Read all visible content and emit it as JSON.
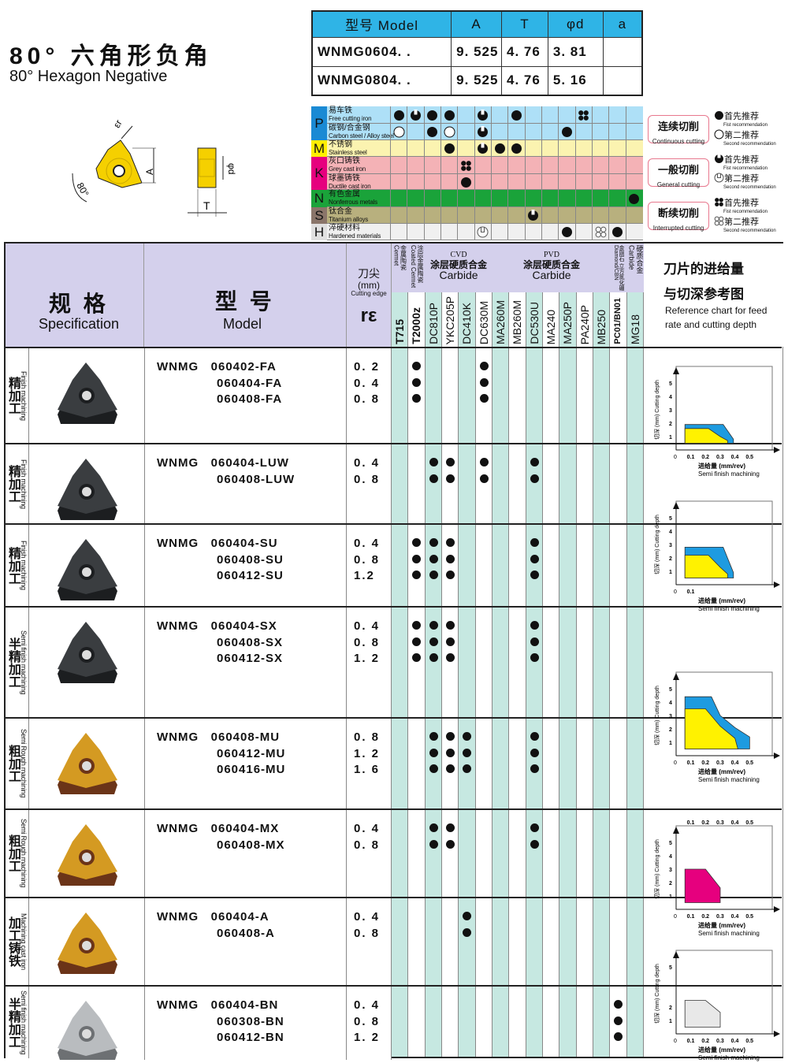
{
  "title": {
    "cn": "80° 六角形负角",
    "en": "80° Hexagon Negative"
  },
  "diagram": {
    "labels": [
      "εr",
      "A",
      "80°",
      "φd",
      "T"
    ],
    "insert_color": "#f5d000"
  },
  "spec_table": {
    "headers": [
      "型号 Model",
      "A",
      "T",
      "φd",
      "a"
    ],
    "rows": [
      [
        "WNMG0604. .",
        "9. 525",
        "4. 76",
        "3. 81",
        ""
      ],
      [
        "WNMG0804. .",
        "9. 525",
        "4. 76",
        "5. 16",
        ""
      ]
    ]
  },
  "materials": [
    {
      "letter": "P",
      "cn": "易车铁",
      "en": "Free cutting iron",
      "color": "#aee0f7",
      "letter_color": "#1a8ad4",
      "marks": {
        "0": "full",
        "1": "general",
        "2": "full",
        "3": "full",
        "5": "general",
        "7": "full",
        "11": "interrupted"
      }
    },
    {
      "letter": "",
      "cn": "碳钢/合金钢",
      "en": "Carbon steel / Alloy steel",
      "color": "#aee0f7",
      "letter_color": "#1a8ad4",
      "marks": {
        "0": "hollow",
        "2": "full",
        "3": "hollow",
        "5": "general",
        "10": "full"
      }
    },
    {
      "letter": "M",
      "cn": "不锈钢",
      "en": "Stainless steel",
      "color": "#fbf3b0",
      "letter_color": "#ffee00",
      "marks": {
        "3": "full",
        "5": "general",
        "6": "full",
        "7": "full"
      }
    },
    {
      "letter": "K",
      "cn": "灰口铸铁",
      "en": "Grey cast iron",
      "color": "#f4b2b6",
      "letter_color": "#e6007e",
      "marks": {
        "4": "interrupted"
      }
    },
    {
      "letter": "",
      "cn": "球墨铸铁",
      "en": "Ductile cast iron",
      "color": "#f4b2b6",
      "letter_color": "#e6007e",
      "marks": {
        "4": "full"
      }
    },
    {
      "letter": "N",
      "cn": "有色金属",
      "en": "Nonferrous metals",
      "color": "#1aa33a",
      "letter_color": "#1aa33a",
      "marks": {
        "14": "full"
      }
    },
    {
      "letter": "S",
      "cn": "钛合金",
      "en": "Titanium alloys",
      "color": "#b8b07e",
      "letter_color": "#8a756a",
      "marks": {
        "8": "general"
      }
    },
    {
      "letter": "H",
      "cn": "淬硬材料",
      "en": "Hardened materials",
      "color": "#f0f0f0",
      "letter_color": "#e0e0e0",
      "marks": {
        "5": "general2",
        "10": "full",
        "12": "interrupted2",
        "13": "full"
      }
    }
  ],
  "legend": [
    {
      "cn": "连续切削",
      "en": "Continuous cutting",
      "first": "首先推荐",
      "first_en": "Fist recommendation",
      "second": "第二推荐",
      "second_en": "Second recommendation",
      "m1": "full",
      "m2": "hollow"
    },
    {
      "cn": "一般切削",
      "en": "General cutting",
      "first": "首先推荐",
      "first_en": "Fist recommendation",
      "second": "第二推荐",
      "second_en": "Second recommendation",
      "m1": "general",
      "m2": "general2"
    },
    {
      "cn": "断续切削",
      "en": "Interrupted cutting",
      "first": "首先推荐",
      "first_en": "Fist recommendation",
      "second": "第二推荐",
      "second_en": "Second recommendation",
      "m1": "interrupted",
      "m2": "interrupted2"
    }
  ],
  "header": {
    "spec_cn": "规 格",
    "spec_en": "Specification",
    "model_cn": "型 号",
    "model_en": "Model",
    "edge_cn": "刀尖",
    "edge_unit": "(mm)",
    "edge_en": "Cutting edge",
    "re": "rε",
    "cermet_cn": "金属陶瓷",
    "cermet_en": "Cermet",
    "coated_cn": "涂层金属陶瓷",
    "coated_en": "Coated Cermet",
    "cvd": "CVD",
    "cvd_cn": "涂层硬质合金",
    "cvd_en": "Carbide",
    "pvd": "PVD",
    "pvd_cn": "涂层硬质合金",
    "pvd_en": "Carbide",
    "cbn_cn": "金刚石 立方氮化硼",
    "cbn_en": "Diamond/CBN",
    "carbide_cn": "硬质合金",
    "carbide_en": "Carbide",
    "chart_cn1": "刀片的进给量",
    "chart_cn2": "与切深参考图",
    "chart_en1": "Reference chart for feed",
    "chart_en2": "rate and cutting depth"
  },
  "grades": [
    "T715",
    "T2000z",
    "DC810P",
    "YKC205P",
    "DC410K",
    "DC630M",
    "MA260M",
    "MB260M",
    "DC530U",
    "MA240",
    "MA250P",
    "PA240P",
    "MB250",
    "PC01/BN01",
    "MG18"
  ],
  "rows": [
    {
      "cat_cn": "精加工",
      "cat_en": "Finish machining",
      "insert": "dark",
      "models": [
        "WNMG   060402-FA",
        "060404-FA",
        "060408-FA"
      ],
      "re": [
        "0. 2",
        "0. 4",
        "0. 8"
      ],
      "marks": [
        1,
        5
      ]
    },
    {
      "cat_cn": "精加工",
      "cat_en": "Finish machining",
      "insert": "dark",
      "models": [
        "WNMG   060404-LUW",
        "060408-LUW"
      ],
      "re": [
        "0. 4",
        "0. 8"
      ],
      "marks": [
        2,
        3,
        5,
        8
      ]
    },
    {
      "cat_cn": "精加工",
      "cat_en": "Finish machining",
      "insert": "dark",
      "models": [
        "WNMG   060404-SU",
        "060408-SU",
        "060412-SU"
      ],
      "re": [
        "0. 4",
        "0. 8",
        "1.2"
      ],
      "marks": [
        1,
        2,
        3,
        8
      ]
    },
    {
      "cat_cn": "半精加工",
      "cat_en": "Semi finish machining",
      "insert": "dark",
      "models": [
        "WNMG   060404-SX",
        "060408-SX",
        "060412-SX"
      ],
      "re": [
        "0. 4",
        "0. 8",
        "1. 2"
      ],
      "marks": [
        1,
        2,
        3,
        8
      ]
    },
    {
      "cat_cn": "粗加工",
      "cat_en": "Semi Rough machining",
      "insert": "gold",
      "models": [
        "WNMG   060408-MU",
        "060412-MU",
        "060416-MU"
      ],
      "re": [
        "0. 8",
        "1. 2",
        "1. 6"
      ],
      "marks": [
        2,
        3,
        4,
        8
      ]
    },
    {
      "cat_cn": "粗加工",
      "cat_en": "Semi Rough machining",
      "insert": "gold",
      "models": [
        "WNMG   060404-MX",
        "060408-MX"
      ],
      "re": [
        "0. 4",
        "0. 8"
      ],
      "marks": [
        2,
        3,
        8
      ]
    },
    {
      "cat_cn": "加工铸铁",
      "cat_en": "Machining cast iron",
      "insert": "gold",
      "models": [
        "WNMG   060404-A",
        "060408-A"
      ],
      "re": [
        "0. 4",
        "0. 8"
      ],
      "marks": [
        4
      ]
    },
    {
      "cat_cn": "半精加工",
      "cat_en": "Semi finish machining",
      "insert": "silver",
      "models": [
        "WNMG   060404-BN",
        "060308-BN",
        "060412-BN"
      ],
      "re": [
        "0. 4",
        "0. 8",
        "1. 2"
      ],
      "marks": [
        13
      ]
    }
  ],
  "chart_data": [
    {
      "type": "area",
      "ylabel": "切深 (mm) Cutting depth",
      "xlabel": "进给量 (mm/rev)",
      "caption": "Semi finish machining",
      "xticks": [
        0.1,
        0.2,
        0.3,
        0.4,
        0.5
      ],
      "yticks": [
        1,
        2,
        3,
        4,
        5
      ],
      "xlim": [
        0,
        0.6
      ],
      "ylim": [
        0,
        6
      ],
      "regions": [
        {
          "color": "#1e9be0",
          "points": [
            [
              0.06,
              0.5
            ],
            [
              0.06,
              1.9
            ],
            [
              0.32,
              1.9
            ],
            [
              0.39,
              0.8
            ],
            [
              0.39,
              0.5
            ]
          ]
        },
        {
          "color": "#fff200",
          "points": [
            [
              0.06,
              0.5
            ],
            [
              0.06,
              1.6
            ],
            [
              0.22,
              1.6
            ],
            [
              0.3,
              1.0
            ],
            [
              0.35,
              0.7
            ],
            [
              0.35,
              0.5
            ]
          ]
        }
      ]
    },
    {
      "type": "area",
      "ylabel": "切深 (mm) Cutting depth",
      "xlabel": "进给量 (mm/rev)",
      "caption": "Semi finish machining",
      "xticks": [
        0.1
      ],
      "yticks": [
        1,
        2,
        3,
        4,
        5
      ],
      "xlim": [
        0,
        0.6
      ],
      "ylim": [
        0,
        6
      ],
      "regions": [
        {
          "color": "#1e9be0",
          "points": [
            [
              0.06,
              0.5
            ],
            [
              0.06,
              2.8
            ],
            [
              0.32,
              2.8
            ],
            [
              0.39,
              0.9
            ],
            [
              0.39,
              0.5
            ]
          ]
        },
        {
          "color": "#fff200",
          "points": [
            [
              0.06,
              0.5
            ],
            [
              0.06,
              2.2
            ],
            [
              0.22,
              2.2
            ],
            [
              0.3,
              1.3
            ],
            [
              0.35,
              0.8
            ],
            [
              0.35,
              0.5
            ]
          ]
        }
      ]
    },
    {
      "type": "area",
      "ylabel": "切深 (mm) Cutting depth",
      "xlabel": "进给量 (mm/rev)",
      "caption": "Semi finish machining",
      "xticks": [
        0.1,
        0.2,
        0.3,
        0.4,
        0.5
      ],
      "yticks": [
        1,
        2,
        3,
        4,
        5
      ],
      "xlim": [
        0,
        0.6
      ],
      "ylim": [
        0,
        6
      ],
      "regions": [
        {
          "color": "#1e9be0",
          "points": [
            [
              0.06,
              0.5
            ],
            [
              0.06,
              4.4
            ],
            [
              0.24,
              4.4
            ],
            [
              0.3,
              3.0
            ],
            [
              0.4,
              2.1
            ],
            [
              0.5,
              1.4
            ],
            [
              0.5,
              0.5
            ]
          ]
        },
        {
          "color": "#fff200",
          "points": [
            [
              0.06,
              0.5
            ],
            [
              0.06,
              3.5
            ],
            [
              0.2,
              3.5
            ],
            [
              0.3,
              2.2
            ],
            [
              0.4,
              1.3
            ],
            [
              0.42,
              0.5
            ]
          ]
        }
      ]
    },
    {
      "type": "area",
      "ylabel": "切深 (mm) Cutting depth",
      "xlabel": "进给量 (mm/rev)",
      "caption": "Semi finish machining",
      "xticks": [
        0.1,
        0.2,
        0.3,
        0.4,
        0.5
      ],
      "top_xticks": [
        0.1,
        0.2,
        0.3,
        0.4,
        0.5
      ],
      "yticks": [
        1,
        2,
        3,
        4,
        5
      ],
      "xlim": [
        0,
        0.6
      ],
      "ylim": [
        0,
        6
      ],
      "regions": [
        {
          "color": "#e6007e",
          "points": [
            [
              0.06,
              0.5
            ],
            [
              0.06,
              3.0
            ],
            [
              0.2,
              3.0
            ],
            [
              0.3,
              1.6
            ],
            [
              0.3,
              0.5
            ]
          ]
        }
      ]
    },
    {
      "type": "area",
      "ylabel": "切深 (mm) Cutting depth",
      "xlabel": "进给量 (mm/rev)",
      "caption": "Semi finish machining",
      "xticks": [
        0.1,
        0.2,
        0.3,
        0.4,
        0.5
      ],
      "yticks": [
        1,
        2,
        5
      ],
      "xlim": [
        0,
        0.6
      ],
      "ylim": [
        0,
        6
      ],
      "regions": [
        {
          "color": "#e8e8e8",
          "points": [
            [
              0.06,
              0.5
            ],
            [
              0.06,
              2.5
            ],
            [
              0.2,
              2.5
            ],
            [
              0.3,
              1.6
            ],
            [
              0.3,
              0.5
            ]
          ]
        }
      ]
    }
  ]
}
